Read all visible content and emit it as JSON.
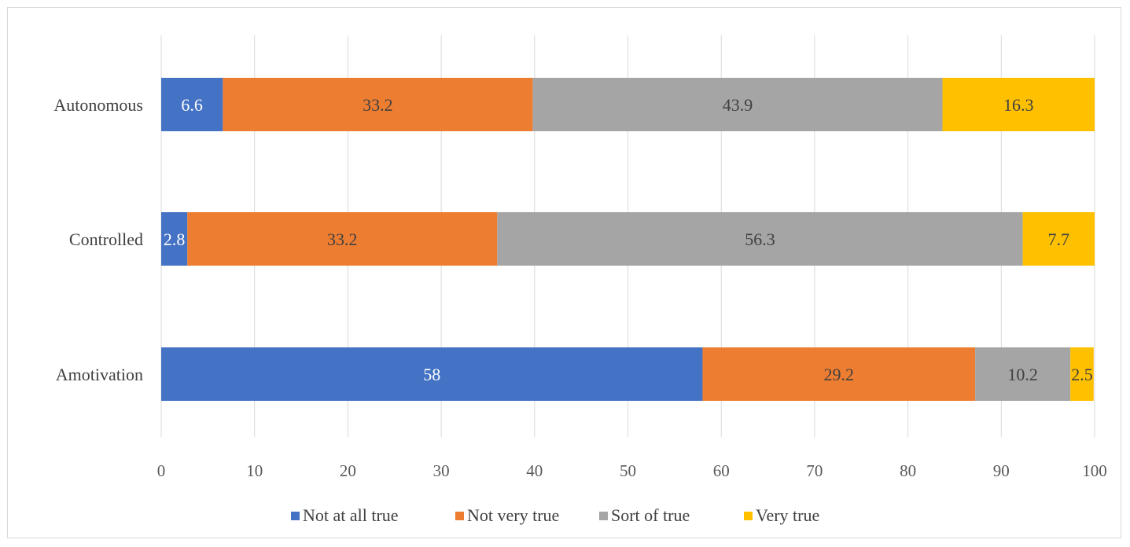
{
  "chart_data": {
    "type": "bar",
    "orientation": "horizontal",
    "stacked": true,
    "title": "",
    "xlabel": "",
    "ylabel": "",
    "xlim": [
      0,
      100
    ],
    "x_ticks": [
      "0",
      "10",
      "20",
      "30",
      "40",
      "50",
      "60",
      "70",
      "80",
      "90",
      "100"
    ],
    "grid": "vertical",
    "legend_position": "bottom",
    "categories": [
      "Autonomous",
      "Controlled",
      "Amotivation"
    ],
    "series": [
      {
        "name": "Not at all true",
        "color": "#4472C4",
        "label_color": "#FFFFFF",
        "values": [
          6.6,
          2.8,
          58
        ]
      },
      {
        "name": "Not very true",
        "color": "#ED7D31",
        "label_color": "#404040",
        "values": [
          33.2,
          33.2,
          29.2
        ]
      },
      {
        "name": "Sort of true",
        "color": "#A5A5A5",
        "label_color": "#404040",
        "values": [
          43.9,
          56.3,
          10.2
        ]
      },
      {
        "name": "Very true",
        "color": "#FFC000",
        "label_color": "#404040",
        "values": [
          16.3,
          7.7,
          2.5
        ]
      }
    ],
    "data_labels": [
      [
        "6.6",
        "33.2",
        "43.9",
        "16.3"
      ],
      [
        "2.8",
        "33.2",
        "56.3",
        "7.7"
      ],
      [
        "58",
        "29.2",
        "10.2",
        "2.5"
      ]
    ]
  }
}
